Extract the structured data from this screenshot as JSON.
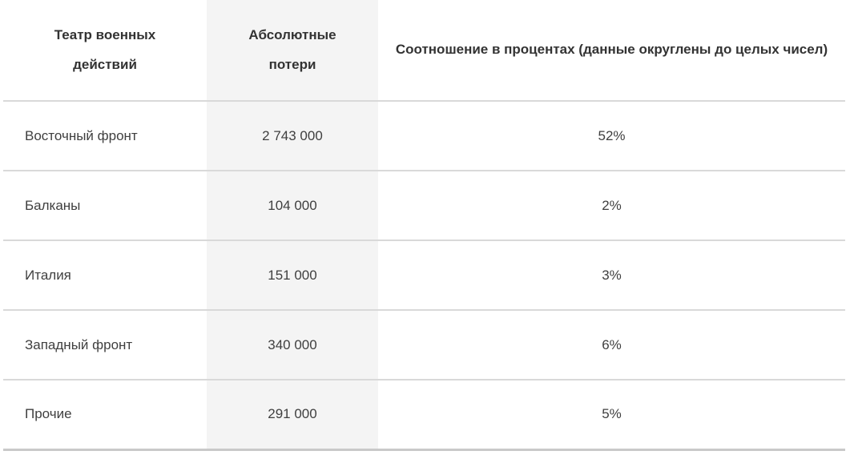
{
  "colors": {
    "highlight_column_bg": "#f4f4f4",
    "row_divider": "#d9d9d9",
    "bottom_border": "#c9c9c9",
    "header_text": "#333333",
    "body_text": "#3f3f3f",
    "page_bg": "#ffffff"
  },
  "chart_data": {
    "type": "table",
    "columns": [
      "Театр военных действий",
      "Абсолютные потери",
      "Соотношение в процентах (данные округлены до целых чисел)"
    ],
    "rows": [
      {
        "theater": "Восточный фронт",
        "losses": "2 743 000",
        "percent": "52%"
      },
      {
        "theater": "Балканы",
        "losses": "104 000",
        "percent": "2%"
      },
      {
        "theater": "Италия",
        "losses": "151 000",
        "percent": "3%"
      },
      {
        "theater": "Западный фронт",
        "losses": "340 000",
        "percent": "6%"
      },
      {
        "theater": "Прочие",
        "losses": "291 000",
        "percent": "5%"
      }
    ]
  }
}
